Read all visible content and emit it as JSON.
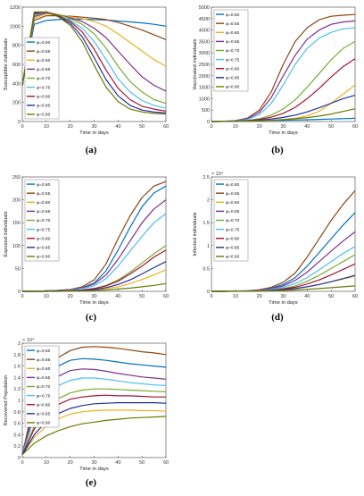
{
  "figure": {
    "panels": [
      {
        "caption": "(a)"
      },
      {
        "caption": "(b)"
      },
      {
        "caption": "(c)"
      },
      {
        "caption": "(d)"
      },
      {
        "caption": "(e)"
      }
    ]
  },
  "legend_labels": [
    "φ=0.50",
    "φ=0.55",
    "φ=0.60",
    "φ=0.65",
    "φ=0.70",
    "φ=0.75",
    "φ=0.80",
    "φ=0.85",
    "φ=0.90"
  ],
  "series_colors": [
    "#0072BD",
    "#8B4513",
    "#EDB120",
    "#7E2F8E",
    "#77AC30",
    "#4DBEEE",
    "#A2142F",
    "#1F2F9E",
    "#6B7A00"
  ],
  "chart_data": [
    {
      "type": "line",
      "caption": "(a)",
      "xlabel": "Time in days",
      "ylabel": "Susceptible individuals",
      "xlim": [
        0,
        60
      ],
      "ylim": [
        0,
        1200
      ],
      "xticks": [
        0,
        10,
        20,
        30,
        40,
        50,
        60
      ],
      "yticks": [
        0,
        200,
        400,
        600,
        800,
        1000,
        1200
      ],
      "exponent": "",
      "legend_position": "lower-left",
      "x": [
        0,
        5,
        10,
        15,
        20,
        25,
        30,
        35,
        40,
        45,
        50,
        55,
        60
      ],
      "series": [
        {
          "name": "φ=0.50",
          "values": [
            380,
            1020,
            1060,
            1070,
            1075,
            1075,
            1070,
            1065,
            1055,
            1045,
            1035,
            1020,
            1000
          ]
        },
        {
          "name": "φ=0.55",
          "values": [
            380,
            1060,
            1110,
            1110,
            1105,
            1095,
            1085,
            1070,
            1040,
            1000,
            960,
            910,
            860
          ]
        },
        {
          "name": "φ=0.60",
          "values": [
            380,
            1080,
            1130,
            1120,
            1100,
            1080,
            1050,
            1000,
            920,
            830,
            740,
            650,
            580
          ]
        },
        {
          "name": "φ=0.65",
          "values": [
            380,
            1100,
            1140,
            1120,
            1090,
            1050,
            980,
            880,
            740,
            600,
            470,
            380,
            320
          ]
        },
        {
          "name": "φ=0.70",
          "values": [
            380,
            1110,
            1150,
            1120,
            1080,
            1020,
            920,
            770,
            580,
            420,
            310,
            230,
            190
          ]
        },
        {
          "name": "φ=0.75",
          "values": [
            380,
            1120,
            1150,
            1110,
            1060,
            980,
            840,
            650,
            450,
            310,
            220,
            170,
            140
          ]
        },
        {
          "name": "φ=0.80",
          "values": [
            380,
            1130,
            1150,
            1110,
            1050,
            940,
            760,
            540,
            350,
            230,
            160,
            130,
            110
          ]
        },
        {
          "name": "φ=0.85",
          "values": [
            380,
            1140,
            1150,
            1100,
            1030,
            890,
            670,
            440,
            270,
            170,
            120,
            100,
            90
          ]
        },
        {
          "name": "φ=0.90",
          "values": [
            380,
            1150,
            1150,
            1100,
            1010,
            840,
            590,
            360,
            210,
            130,
            100,
            85,
            80
          ]
        }
      ]
    },
    {
      "type": "line",
      "caption": "(b)",
      "xlabel": "Time in days",
      "ylabel": "Vaccinated individuals",
      "xlim": [
        0,
        60
      ],
      "ylim": [
        0,
        5000
      ],
      "xticks": [
        0,
        10,
        20,
        30,
        40,
        50,
        60
      ],
      "yticks": [
        0,
        500,
        1000,
        1500,
        2000,
        2500,
        3000,
        3500,
        4000,
        4500,
        5000
      ],
      "exponent": "",
      "legend_position": "top-left",
      "x": [
        0,
        5,
        10,
        15,
        20,
        25,
        30,
        35,
        40,
        45,
        50,
        55,
        60
      ],
      "series": [
        {
          "name": "φ=0.50",
          "values": [
            0,
            5,
            15,
            25,
            35,
            45,
            55,
            65,
            80,
            95,
            110,
            125,
            140
          ]
        },
        {
          "name": "φ=0.55",
          "values": [
            0,
            10,
            40,
            150,
            500,
            1300,
            2500,
            3500,
            4100,
            4450,
            4600,
            4650,
            4680
          ]
        },
        {
          "name": "φ=0.60",
          "values": [
            0,
            5,
            15,
            25,
            40,
            60,
            90,
            140,
            250,
            450,
            800,
            1200,
            1600
          ]
        },
        {
          "name": "φ=0.65",
          "values": [
            0,
            10,
            35,
            120,
            400,
            1050,
            2000,
            2900,
            3600,
            4000,
            4250,
            4350,
            4400
          ]
        },
        {
          "name": "φ=0.70",
          "values": [
            0,
            5,
            20,
            50,
            120,
            280,
            550,
            950,
            1500,
            2100,
            2700,
            3200,
            3500
          ]
        },
        {
          "name": "φ=0.75",
          "values": [
            0,
            8,
            30,
            90,
            300,
            800,
            1600,
            2500,
            3200,
            3650,
            3900,
            4050,
            4100
          ]
        },
        {
          "name": "φ=0.80",
          "values": [
            0,
            5,
            20,
            40,
            90,
            190,
            360,
            620,
            1000,
            1450,
            1950,
            2400,
            2750
          ]
        },
        {
          "name": "φ=0.85",
          "values": [
            0,
            5,
            15,
            30,
            60,
            110,
            180,
            280,
            420,
            600,
            800,
            1000,
            1150
          ]
        },
        {
          "name": "φ=0.90",
          "values": [
            0,
            5,
            12,
            20,
            35,
            55,
            85,
            120,
            170,
            240,
            330,
            440,
            560
          ]
        }
      ]
    },
    {
      "type": "line",
      "caption": "(c)",
      "xlabel": "Time in days",
      "ylabel": "Exposed individuals",
      "xlim": [
        0,
        60
      ],
      "ylim": [
        0,
        250
      ],
      "xticks": [
        0,
        10,
        20,
        30,
        40,
        50,
        60
      ],
      "yticks": [
        0,
        50,
        100,
        150,
        200,
        250
      ],
      "exponent": "",
      "legend_position": "top-left",
      "x": [
        0,
        5,
        10,
        15,
        20,
        25,
        30,
        35,
        40,
        45,
        50,
        55,
        60
      ],
      "series": [
        {
          "name": "φ=0.50",
          "values": [
            0,
            0,
            1,
            2,
            4,
            8,
            18,
            45,
            90,
            140,
            185,
            215,
            230
          ]
        },
        {
          "name": "φ=0.55",
          "values": [
            0,
            0,
            1,
            2,
            4,
            10,
            25,
            60,
            115,
            165,
            205,
            230,
            240
          ]
        },
        {
          "name": "φ=0.60",
          "values": [
            0,
            0,
            0,
            1,
            1,
            2,
            3,
            6,
            10,
            17,
            26,
            36,
            47
          ]
        },
        {
          "name": "φ=0.65",
          "values": [
            0,
            0,
            1,
            2,
            3,
            7,
            16,
            36,
            70,
            110,
            150,
            180,
            200
          ]
        },
        {
          "name": "φ=0.70",
          "values": [
            0,
            0,
            0,
            1,
            2,
            3,
            6,
            13,
            25,
            42,
            62,
            82,
            100
          ]
        },
        {
          "name": "φ=0.75",
          "values": [
            0,
            0,
            1,
            1,
            3,
            6,
            12,
            28,
            55,
            88,
            120,
            150,
            170
          ]
        },
        {
          "name": "φ=0.80",
          "values": [
            0,
            0,
            0,
            1,
            2,
            3,
            6,
            12,
            22,
            38,
            55,
            75,
            90
          ]
        },
        {
          "name": "φ=0.85",
          "values": [
            0,
            0,
            0,
            1,
            1,
            2,
            4,
            8,
            15,
            25,
            38,
            52,
            65
          ]
        },
        {
          "name": "φ=0.90",
          "values": [
            0,
            0,
            0,
            0,
            1,
            1,
            2,
            3,
            5,
            7,
            10,
            13,
            17
          ]
        }
      ]
    },
    {
      "type": "line",
      "caption": "(d)",
      "xlabel": "Time in days",
      "ylabel": "Infected individuals",
      "xlim": [
        0,
        60
      ],
      "ylim": [
        0,
        2.5
      ],
      "xticks": [
        0,
        10,
        20,
        30,
        40,
        50,
        60
      ],
      "yticks": [
        0,
        0.5,
        1,
        1.5,
        2,
        2.5
      ],
      "exponent": "× 10⁴",
      "legend_position": "top-left",
      "x": [
        0,
        5,
        10,
        15,
        20,
        25,
        30,
        35,
        40,
        45,
        50,
        55,
        60
      ],
      "series": [
        {
          "name": "φ=0.50",
          "values": [
            0,
            0,
            0.005,
            0.01,
            0.03,
            0.07,
            0.15,
            0.3,
            0.55,
            0.85,
            1.15,
            1.45,
            1.72
          ]
        },
        {
          "name": "φ=0.55",
          "values": [
            0,
            0,
            0.005,
            0.012,
            0.035,
            0.09,
            0.2,
            0.4,
            0.75,
            1.15,
            1.55,
            1.9,
            2.2
          ]
        },
        {
          "name": "φ=0.60",
          "values": [
            0,
            0,
            0.003,
            0.006,
            0.012,
            0.02,
            0.035,
            0.06,
            0.1,
            0.15,
            0.21,
            0.27,
            0.33
          ]
        },
        {
          "name": "φ=0.65",
          "values": [
            0,
            0,
            0.004,
            0.009,
            0.025,
            0.06,
            0.12,
            0.24,
            0.42,
            0.65,
            0.88,
            1.1,
            1.3
          ]
        },
        {
          "name": "φ=0.70",
          "values": [
            0,
            0,
            0.003,
            0.007,
            0.015,
            0.03,
            0.06,
            0.12,
            0.22,
            0.35,
            0.5,
            0.65,
            0.8
          ]
        },
        {
          "name": "φ=0.75",
          "values": [
            0,
            0,
            0.004,
            0.008,
            0.02,
            0.045,
            0.09,
            0.17,
            0.3,
            0.47,
            0.65,
            0.83,
            0.98
          ]
        },
        {
          "name": "φ=0.80",
          "values": [
            0,
            0,
            0.003,
            0.006,
            0.013,
            0.025,
            0.05,
            0.09,
            0.16,
            0.25,
            0.36,
            0.48,
            0.6
          ]
        },
        {
          "name": "φ=0.85",
          "values": [
            0,
            0,
            0.002,
            0.005,
            0.01,
            0.02,
            0.035,
            0.06,
            0.1,
            0.15,
            0.21,
            0.28,
            0.35
          ]
        },
        {
          "name": "φ=0.90",
          "values": [
            0,
            0,
            0.002,
            0.004,
            0.008,
            0.013,
            0.02,
            0.03,
            0.045,
            0.06,
            0.08,
            0.1,
            0.12
          ]
        }
      ]
    },
    {
      "type": "line",
      "caption": "(e)",
      "xlabel": "Time in days",
      "ylabel": "Recovered Population",
      "xlim": [
        0,
        60
      ],
      "ylim": [
        0,
        2
      ],
      "xticks": [
        0,
        10,
        20,
        30,
        40,
        50,
        60
      ],
      "yticks": [
        0,
        0.2,
        0.4,
        0.6,
        0.8,
        1,
        1.2,
        1.4,
        1.6,
        1.8,
        2
      ],
      "exponent": "× 10⁴",
      "legend_position": "top-left",
      "x": [
        0,
        5,
        10,
        15,
        20,
        25,
        30,
        35,
        40,
        45,
        50,
        55,
        60
      ],
      "series": [
        {
          "name": "φ=0.50",
          "values": [
            0.05,
            0.9,
            1.35,
            1.6,
            1.7,
            1.73,
            1.72,
            1.7,
            1.67,
            1.64,
            1.62,
            1.6,
            1.58
          ]
        },
        {
          "name": "φ=0.55",
          "values": [
            0.05,
            1.0,
            1.5,
            1.75,
            1.87,
            1.93,
            1.94,
            1.93,
            1.91,
            1.88,
            1.85,
            1.83,
            1.8
          ]
        },
        {
          "name": "φ=0.60",
          "values": [
            0.05,
            0.35,
            0.55,
            0.68,
            0.76,
            0.8,
            0.82,
            0.83,
            0.83,
            0.83,
            0.82,
            0.82,
            0.81
          ]
        },
        {
          "name": "φ=0.65",
          "values": [
            0.05,
            0.8,
            1.2,
            1.42,
            1.52,
            1.55,
            1.54,
            1.51,
            1.47,
            1.44,
            1.41,
            1.39,
            1.37
          ]
        },
        {
          "name": "φ=0.70",
          "values": [
            0.05,
            0.55,
            0.85,
            1.03,
            1.13,
            1.18,
            1.2,
            1.2,
            1.19,
            1.18,
            1.17,
            1.16,
            1.15
          ]
        },
        {
          "name": "φ=0.75",
          "values": [
            0.05,
            0.7,
            1.05,
            1.26,
            1.35,
            1.39,
            1.39,
            1.37,
            1.34,
            1.31,
            1.29,
            1.27,
            1.26
          ]
        },
        {
          "name": "φ=0.80",
          "values": [
            0.05,
            0.5,
            0.78,
            0.93,
            1.02,
            1.06,
            1.08,
            1.09,
            1.08,
            1.08,
            1.07,
            1.06,
            1.06
          ]
        },
        {
          "name": "φ=0.85",
          "values": [
            0.05,
            0.4,
            0.63,
            0.77,
            0.86,
            0.91,
            0.94,
            0.95,
            0.96,
            0.96,
            0.96,
            0.96,
            0.95
          ]
        },
        {
          "name": "φ=0.90",
          "values": [
            0.05,
            0.25,
            0.38,
            0.47,
            0.54,
            0.59,
            0.62,
            0.65,
            0.67,
            0.69,
            0.7,
            0.71,
            0.72
          ]
        }
      ]
    }
  ]
}
